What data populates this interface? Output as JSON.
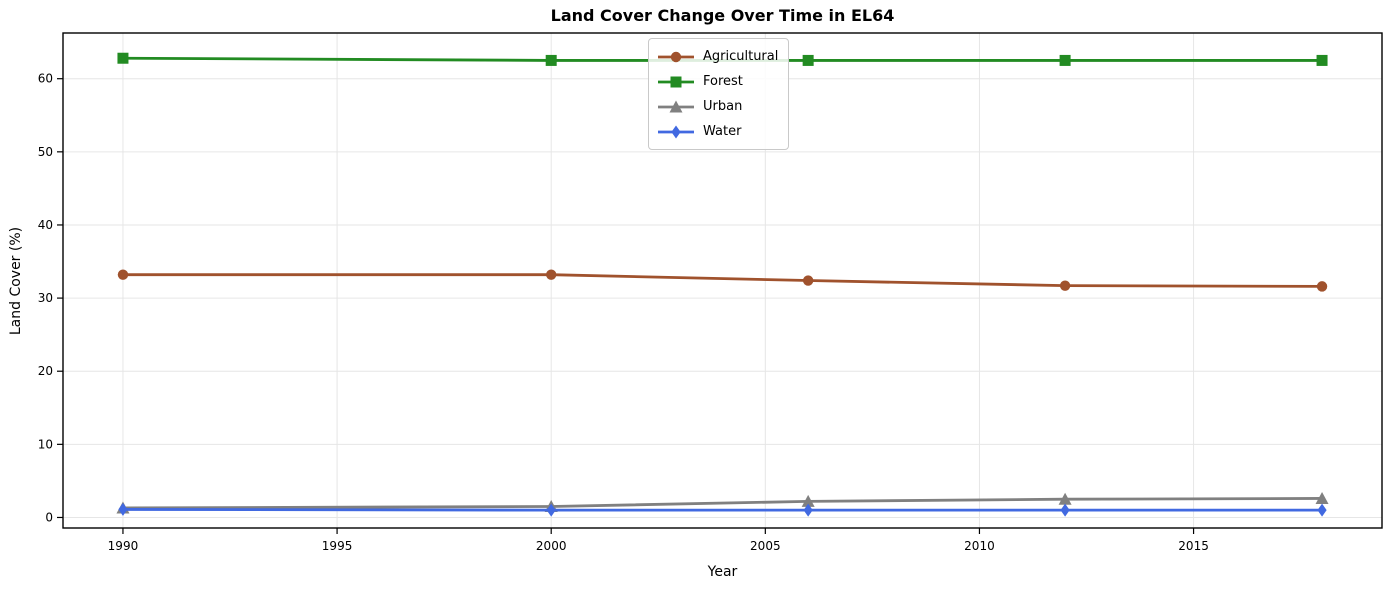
{
  "chart_data": {
    "type": "line",
    "title": "Land Cover Change Over Time in EL64",
    "xlabel": "Year",
    "ylabel": "Land Cover (%)",
    "x": [
      1990,
      2000,
      2006,
      2012,
      2018
    ],
    "series": [
      {
        "name": "Agricultural",
        "color": "#A0522D",
        "marker": "circle",
        "values": [
          33.2,
          33.2,
          32.4,
          31.7,
          31.6
        ]
      },
      {
        "name": "Forest",
        "color": "#228B22",
        "marker": "square",
        "values": [
          62.8,
          62.5,
          62.5,
          62.5,
          62.5
        ]
      },
      {
        "name": "Urban",
        "color": "#808080",
        "marker": "triangle",
        "values": [
          1.3,
          1.5,
          2.2,
          2.5,
          2.6
        ]
      },
      {
        "name": "Water",
        "color": "#4169E1",
        "marker": "diamond",
        "values": [
          1.1,
          1.0,
          1.0,
          1.0,
          1.0
        ]
      }
    ],
    "xticks": [
      1990,
      1995,
      2000,
      2005,
      2010,
      2015
    ],
    "yticks": [
      0,
      10,
      20,
      30,
      40,
      50,
      60
    ],
    "xlim": [
      1988.6,
      2019.4
    ],
    "ylim": [
      -1.44,
      66.25
    ],
    "grid": true,
    "legend_position": "upper center",
    "colors": {
      "grid": "#e6e6e6",
      "spine": "#000000",
      "background": "#ffffff"
    }
  }
}
